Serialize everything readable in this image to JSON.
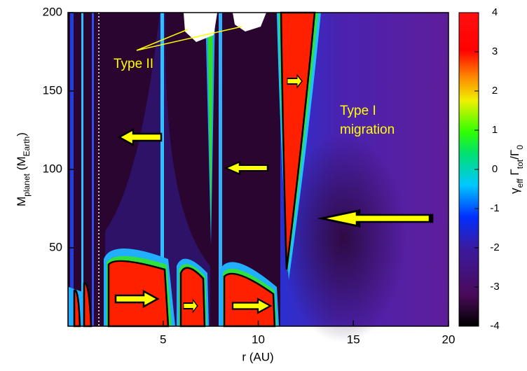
{
  "chart_data": {
    "type": "heatmap",
    "xlabel": "r (AU)",
    "ylabel": [
      "M",
      "planet",
      " (M",
      "Earth",
      ")"
    ],
    "xlim": [
      0,
      20
    ],
    "xticks": [
      5,
      10,
      15,
      20
    ],
    "ylim": [
      0,
      200
    ],
    "yticks": [
      50,
      100,
      150,
      200
    ],
    "colorbar": {
      "label": [
        "γ",
        "eff",
        " Γ",
        "tot",
        "/Γ",
        "0"
      ],
      "lim": [
        -4,
        4
      ],
      "ticks": [
        -4,
        -3,
        -2,
        -1,
        0,
        1,
        2,
        3,
        4
      ]
    },
    "annotations": [
      "Type II",
      "Type I",
      "migration"
    ]
  }
}
